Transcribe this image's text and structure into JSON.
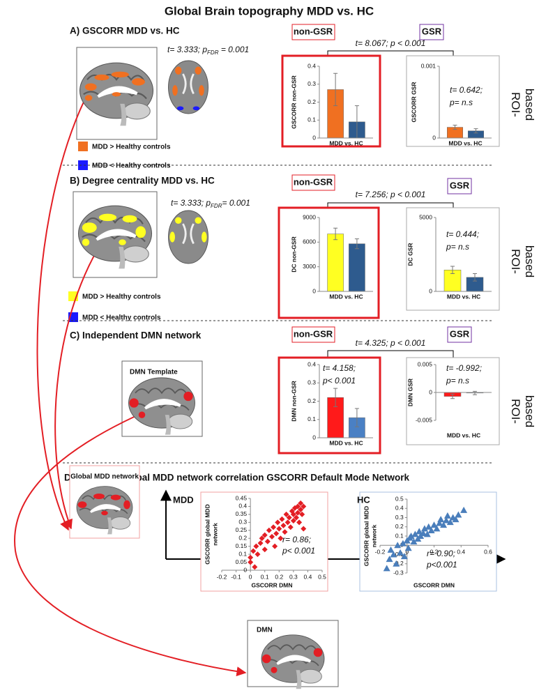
{
  "title": "Global Brain topography MDD vs. HC",
  "panels": [
    {
      "heading": "A) GSCORR MDD vs. HC",
      "stat": [
        "t= 3.333; p",
        "FDR",
        " = 0.001"
      ],
      "legend": [
        "MDD > Healthy controls",
        "MDD < Healthy controls"
      ],
      "conditions": [
        "non-GSR",
        "GSR"
      ],
      "comparison": "t= 8.067; p < 0.001",
      "side_label": [
        "ROI-",
        "based"
      ]
    },
    {
      "heading": "B) Degree centrality MDD vs. HC",
      "stat": [
        "t= 3.333; p",
        "FDR",
        "= 0.001"
      ],
      "legend": [
        "MDD > Healthy controls",
        "MDD < Healthy controls"
      ],
      "conditions": [
        "non-GSR",
        "GSR"
      ],
      "comparison": "t= 7.256; p < 0.001",
      "side_label": [
        "ROI-",
        "based"
      ]
    },
    {
      "heading": "C) Independent DMN network",
      "template": "DMN Template",
      "conditions": [
        "non-GSR",
        "GSR"
      ],
      "comparison": "t= 4.325; p < 0.001",
      "side_label": [
        "ROI-",
        "based"
      ]
    },
    {
      "heading": "D) GSCORR Global MDD network correlation GSCORR Default Mode Network",
      "images": [
        "Global MDD network",
        "DMN"
      ]
    }
  ],
  "chart_data": [
    {
      "type": "bar",
      "ylabel": "GSCORR non-GSR",
      "xlabel": "MDD vs. HC",
      "values": [
        0.27,
        0.09
      ],
      "errors": [
        0.09,
        0.09
      ],
      "colors": [
        "#f07021",
        "#2e5b8e"
      ],
      "ylim": [
        0,
        0.4
      ],
      "yticks": [
        0,
        0.1,
        0.2,
        0.3,
        0.4
      ]
    },
    {
      "type": "bar",
      "ylabel": "GSCORR GSR",
      "xlabel": "MDD vs. HC",
      "annotation": [
        "t= 0.642;",
        "p= n.s"
      ],
      "values": [
        0.00015,
        0.0001
      ],
      "errors": [
        3e-05,
        3e-05
      ],
      "colors": [
        "#f07021",
        "#2e5b8e"
      ],
      "ylim": [
        0,
        0.001
      ],
      "yticks": [
        0,
        0.001
      ]
    },
    {
      "type": "bar",
      "ylabel": "DC non-GSR",
      "xlabel": "MDD vs. HC",
      "values": [
        7000,
        5800
      ],
      "errors": [
        700,
        600
      ],
      "colors": [
        "#ffff22",
        "#2e5b8e"
      ],
      "ylim": [
        0,
        9000
      ],
      "yticks": [
        0,
        3000,
        6000,
        9000
      ]
    },
    {
      "type": "bar",
      "ylabel": "DC GSR",
      "xlabel": "MDD vs. HC",
      "annotation": [
        "t= 0.444;",
        "p= n.s"
      ],
      "values": [
        1450,
        950
      ],
      "errors": [
        250,
        250
      ],
      "colors": [
        "#ffff22",
        "#2e5b8e"
      ],
      "ylim": [
        0,
        5000
      ],
      "yticks": [
        0,
        5000
      ]
    },
    {
      "type": "bar",
      "ylabel": "DMN non-GSR",
      "xlabel": "MDD vs. HC",
      "annotation": [
        "t= 4.158;",
        "p< 0.001"
      ],
      "values": [
        0.22,
        0.11
      ],
      "errors": [
        0.05,
        0.05
      ],
      "colors": [
        "#ff1a1a",
        "#4a80c4"
      ],
      "ylim": [
        0,
        0.4
      ],
      "yticks": [
        0,
        0.1,
        0.2,
        0.3,
        0.4
      ]
    },
    {
      "type": "bar",
      "ylabel": "DMN GSR",
      "xlabel": "MDD vs. HC",
      "annotation": [
        "t= -0.992;",
        "p= n.s"
      ],
      "values": [
        -0.0007,
        -0.0001
      ],
      "errors": [
        0.0004,
        0.0003
      ],
      "colors": [
        "#ff1a1a",
        "#4a80c4"
      ],
      "ylim": [
        -0.005,
        0.005
      ],
      "yticks": [
        -0.005,
        0,
        0.005
      ]
    },
    {
      "type": "scatter",
      "group": "MDD",
      "xlabel": "GSCORR DMN",
      "ylabel": [
        "GSCORR global MDD",
        "network"
      ],
      "annotation": [
        "r= 0.86;",
        "p< 0.001"
      ],
      "color": "#e31e24",
      "marker": "diamond",
      "x": [
        0.0,
        0.0,
        0.02,
        0.03,
        0.04,
        0.05,
        0.07,
        0.08,
        0.1,
        0.1,
        0.12,
        0.13,
        0.15,
        0.16,
        0.17,
        0.18,
        0.19,
        0.2,
        0.21,
        0.22,
        0.23,
        0.24,
        0.25,
        0.26,
        0.27,
        0.28,
        0.29,
        0.3,
        0.3,
        0.31,
        0.32,
        0.33,
        0.33,
        0.34,
        0.35,
        0.35,
        0.36,
        0.37,
        0.37
      ],
      "values": [
        0.05,
        0.08,
        0.12,
        0.02,
        0.15,
        0.1,
        0.17,
        0.2,
        0.13,
        0.22,
        0.18,
        0.25,
        0.21,
        0.27,
        0.15,
        0.23,
        0.3,
        0.26,
        0.2,
        0.32,
        0.28,
        0.24,
        0.35,
        0.3,
        0.33,
        0.27,
        0.37,
        0.31,
        0.35,
        0.39,
        0.33,
        0.36,
        0.4,
        0.3,
        0.38,
        0.42,
        0.35,
        0.4,
        0.26
      ],
      "xlim": [
        -0.2,
        0.5
      ],
      "ylim": [
        0,
        0.45
      ],
      "xticks": [
        -0.2,
        -0.1,
        0,
        0.1,
        0.2,
        0.3,
        0.4,
        0.5
      ],
      "yticks": [
        0,
        0.05,
        0.1,
        0.15,
        0.2,
        0.25,
        0.3,
        0.35,
        0.4,
        0.45
      ]
    },
    {
      "type": "scatter",
      "group": "HC",
      "xlabel": "GSCORR DMN",
      "ylabel": [
        "GSCORR global MDD",
        "network"
      ],
      "annotation": [
        "r= 0.90;",
        "p<0.001"
      ],
      "color": "#4a7ebb",
      "marker": "triangle",
      "x": [
        -0.15,
        -0.13,
        -0.12,
        -0.1,
        -0.08,
        -0.07,
        -0.05,
        -0.03,
        -0.02,
        0.0,
        0.01,
        0.02,
        0.03,
        0.05,
        0.06,
        0.08,
        0.09,
        0.1,
        0.12,
        0.13,
        0.15,
        0.16,
        0.18,
        0.2,
        0.22,
        0.24,
        0.25,
        0.27,
        0.29,
        0.3,
        0.32,
        0.34,
        0.36,
        0.38,
        0.42
      ],
      "values": [
        -0.25,
        -0.15,
        -0.05,
        -0.1,
        -0.2,
        0.0,
        -0.08,
        0.02,
        -0.12,
        0.05,
        -0.03,
        0.08,
        0.1,
        0.04,
        0.12,
        0.07,
        0.15,
        0.1,
        0.13,
        0.18,
        0.12,
        0.2,
        0.16,
        0.22,
        0.18,
        0.24,
        0.28,
        0.22,
        0.27,
        0.32,
        0.25,
        0.3,
        0.28,
        0.33,
        0.38
      ],
      "xlim": [
        -0.2,
        0.6
      ],
      "ylim": [
        -0.3,
        0.5
      ],
      "xticks": [
        -0.2,
        0,
        0.2,
        0.4,
        0.6
      ],
      "yticks": [
        -0.3,
        -0.2,
        -0.1,
        0,
        0.1,
        0.2,
        0.3,
        0.4,
        0.5
      ]
    }
  ]
}
